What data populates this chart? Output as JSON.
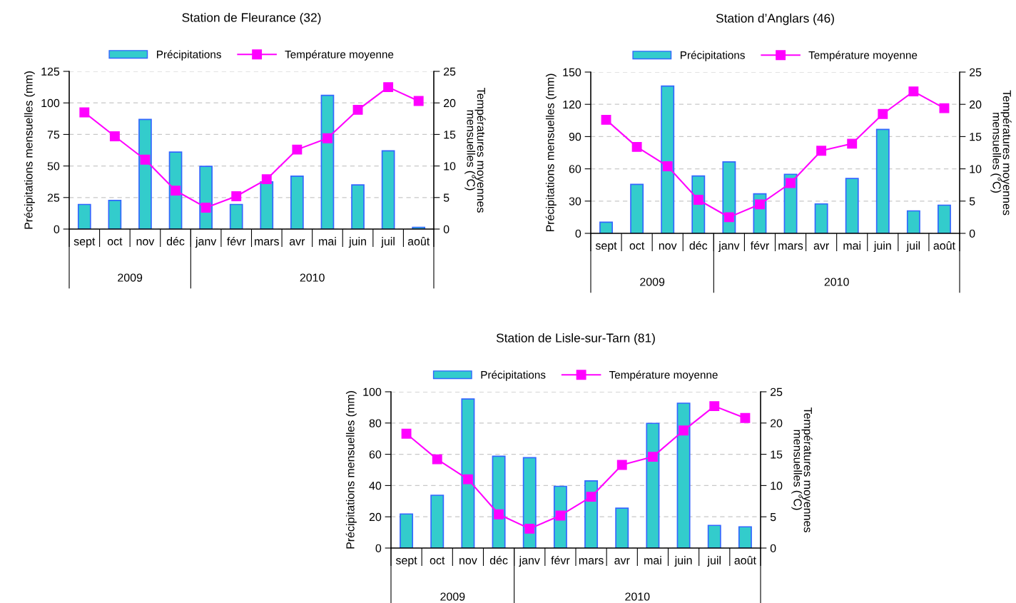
{
  "chart_data": [
    {
      "type": "bar",
      "title": "Station de Fleurance (32)",
      "ylabel": "Précipitations mensuelles (mm)",
      "y2label": "Températures moyennes mensuelles (°C)",
      "categories": [
        "sept",
        "oct",
        "nov",
        "déc",
        "janv",
        "févr",
        "mars",
        "avr",
        "mai",
        "juin",
        "juil",
        "août"
      ],
      "series": [
        {
          "name": "Précipitations",
          "color": "#33cccc",
          "values": [
            19.5,
            22.7,
            86.9,
            61,
            49.7,
            19.5,
            37.4,
            41.9,
            106,
            35,
            62,
            1.4
          ]
        },
        {
          "name": "Température moyenne",
          "type": "line",
          "axis": "y2",
          "color": "#ff00ff",
          "values": [
            18.5,
            14.7,
            11.0,
            6.1,
            3.4,
            5.2,
            7.9,
            12.6,
            14.4,
            18.9,
            22.5,
            20.3
          ]
        }
      ],
      "ylim": [
        0,
        125
      ],
      "yticks": [
        0,
        25,
        50,
        75,
        100,
        125
      ],
      "y2lim": [
        0,
        25
      ],
      "y2ticks": [
        0,
        5,
        10,
        15,
        20,
        25
      ],
      "annotations": [
        "2009",
        "2010"
      ],
      "grid": "y",
      "legend": "top",
      "marker": "square"
    },
    {
      "type": "bar",
      "title": "Station d’Anglars (46)",
      "ylabel": "Précipitations mensuelles (mm)",
      "y2label": "Températures moyennes mensuelles (°C)",
      "categories": [
        "sept",
        "oct",
        "nov",
        "déc",
        "janv",
        "févr",
        "mars",
        "avr",
        "mai",
        "juin",
        "juil",
        "août"
      ],
      "series": [
        {
          "name": "Précipitations",
          "color": "#33cccc",
          "values": [
            10.4,
            45.6,
            137,
            53.4,
            66.5,
            36.7,
            54.9,
            27.4,
            51,
            96.6,
            20.9,
            26.2
          ]
        },
        {
          "name": "Température moyenne",
          "type": "line",
          "axis": "y2",
          "color": "#ff00ff",
          "values": [
            17.6,
            13.4,
            10.4,
            5.2,
            2.5,
            4.5,
            7.8,
            12.8,
            13.9,
            18.5,
            22.0,
            19.4
          ]
        }
      ],
      "ylim": [
        0,
        150
      ],
      "yticks": [
        0,
        30,
        60,
        90,
        120,
        150
      ],
      "y2lim": [
        0,
        25
      ],
      "y2ticks": [
        0,
        5,
        10,
        15,
        20,
        25
      ],
      "annotations": [
        "2009",
        "2010"
      ],
      "grid": "y",
      "legend": "top",
      "marker": "square"
    },
    {
      "type": "bar",
      "title": "Station de Lisle-sur-Tarn (81)",
      "ylabel": "Précipitations mensuelles (mm)",
      "y2label": "Températures moyennes mensuelles (°C)",
      "categories": [
        "sept",
        "oct",
        "nov",
        "déc",
        "janv",
        "févr",
        "mars",
        "avr",
        "mai",
        "juin",
        "juil",
        "août"
      ],
      "series": [
        {
          "name": "Précipitations",
          "color": "#33cccc",
          "values": [
            21.8,
            33.8,
            95.4,
            58.7,
            57.8,
            39.5,
            43,
            25.5,
            79.8,
            92.7,
            14.5,
            13.6
          ]
        },
        {
          "name": "Température moyenne",
          "type": "line",
          "axis": "y2",
          "color": "#ff00ff",
          "values": [
            18.3,
            14.2,
            11.0,
            5.4,
            3.1,
            5.2,
            8.2,
            13.3,
            14.6,
            18.8,
            22.7,
            20.8
          ]
        }
      ],
      "ylim": [
        0,
        100
      ],
      "yticks": [
        0,
        20,
        40,
        60,
        80,
        100
      ],
      "y2lim": [
        0,
        25
      ],
      "y2ticks": [
        0,
        5,
        10,
        15,
        20,
        25
      ],
      "annotations": [
        "2009",
        "2010"
      ],
      "grid": "y",
      "legend": "top",
      "marker": "square"
    }
  ]
}
